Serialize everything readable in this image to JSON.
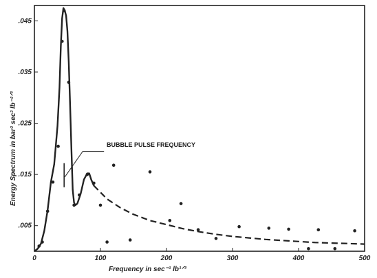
{
  "chart_data": {
    "type": "line",
    "xlabel": "Frequency in sec⁻¹ lb¹ᐟ³",
    "ylabel": "Energy Spectrum in bar² sec² lb⁻²ᐟ³",
    "xlim": [
      0,
      500
    ],
    "ylim": [
      0,
      0.048
    ],
    "x_ticks": [
      "0",
      "100",
      "200",
      "300",
      "400",
      "500"
    ],
    "y_ticks": [
      {
        "value": 0.005,
        "label": ".005"
      },
      {
        "value": 0.015,
        "label": ".015"
      },
      {
        "value": 0.025,
        "label": ".025"
      },
      {
        "value": 0.035,
        "label": ".035"
      },
      {
        "value": 0.045,
        "label": ".045"
      }
    ],
    "grid": false,
    "annotation": {
      "text": "BUBBLE PULSE FREQUENCY",
      "x": 45,
      "y": 0.0145
    },
    "solid_curve": {
      "x": [
        0,
        5,
        10,
        15,
        20,
        25,
        30,
        35,
        38,
        40,
        42,
        44,
        46,
        48,
        50,
        52,
        54,
        56,
        58,
        60,
        62,
        65,
        70,
        75,
        80,
        83,
        86,
        90
      ],
      "y": [
        0.0,
        0.0005,
        0.0015,
        0.004,
        0.008,
        0.0135,
        0.017,
        0.0245,
        0.032,
        0.04,
        0.0455,
        0.0475,
        0.047,
        0.046,
        0.043,
        0.037,
        0.029,
        0.02,
        0.012,
        0.0095,
        0.009,
        0.0093,
        0.0112,
        0.014,
        0.0152,
        0.0152,
        0.014,
        0.0128
      ]
    },
    "dashed_curve": {
      "x": [
        90,
        110,
        130,
        150,
        175,
        200,
        225,
        250,
        275,
        300,
        325,
        350,
        375,
        400,
        425,
        450,
        475,
        500
      ],
      "y": [
        0.0128,
        0.0102,
        0.0085,
        0.0072,
        0.006,
        0.0052,
        0.0044,
        0.0038,
        0.0033,
        0.0029,
        0.0026,
        0.0023,
        0.0021,
        0.0019,
        0.0017,
        0.0016,
        0.0015,
        0.0014
      ]
    },
    "points": {
      "x": [
        7,
        12,
        20,
        28,
        36,
        42,
        45,
        52,
        60,
        68,
        80,
        90,
        100,
        110,
        120,
        145,
        175,
        205,
        222,
        248,
        275,
        310,
        355,
        385,
        415,
        430,
        455,
        485
      ],
      "y": [
        0.001,
        0.0018,
        0.0078,
        0.0135,
        0.0205,
        0.041,
        0.047,
        0.033,
        0.009,
        0.011,
        0.015,
        0.0133,
        0.009,
        0.0018,
        0.0168,
        0.0022,
        0.0155,
        0.006,
        0.0093,
        0.0042,
        0.0025,
        0.0048,
        0.0045,
        0.0043,
        0.0005,
        0.0042,
        0.0005,
        0.004
      ]
    }
  }
}
